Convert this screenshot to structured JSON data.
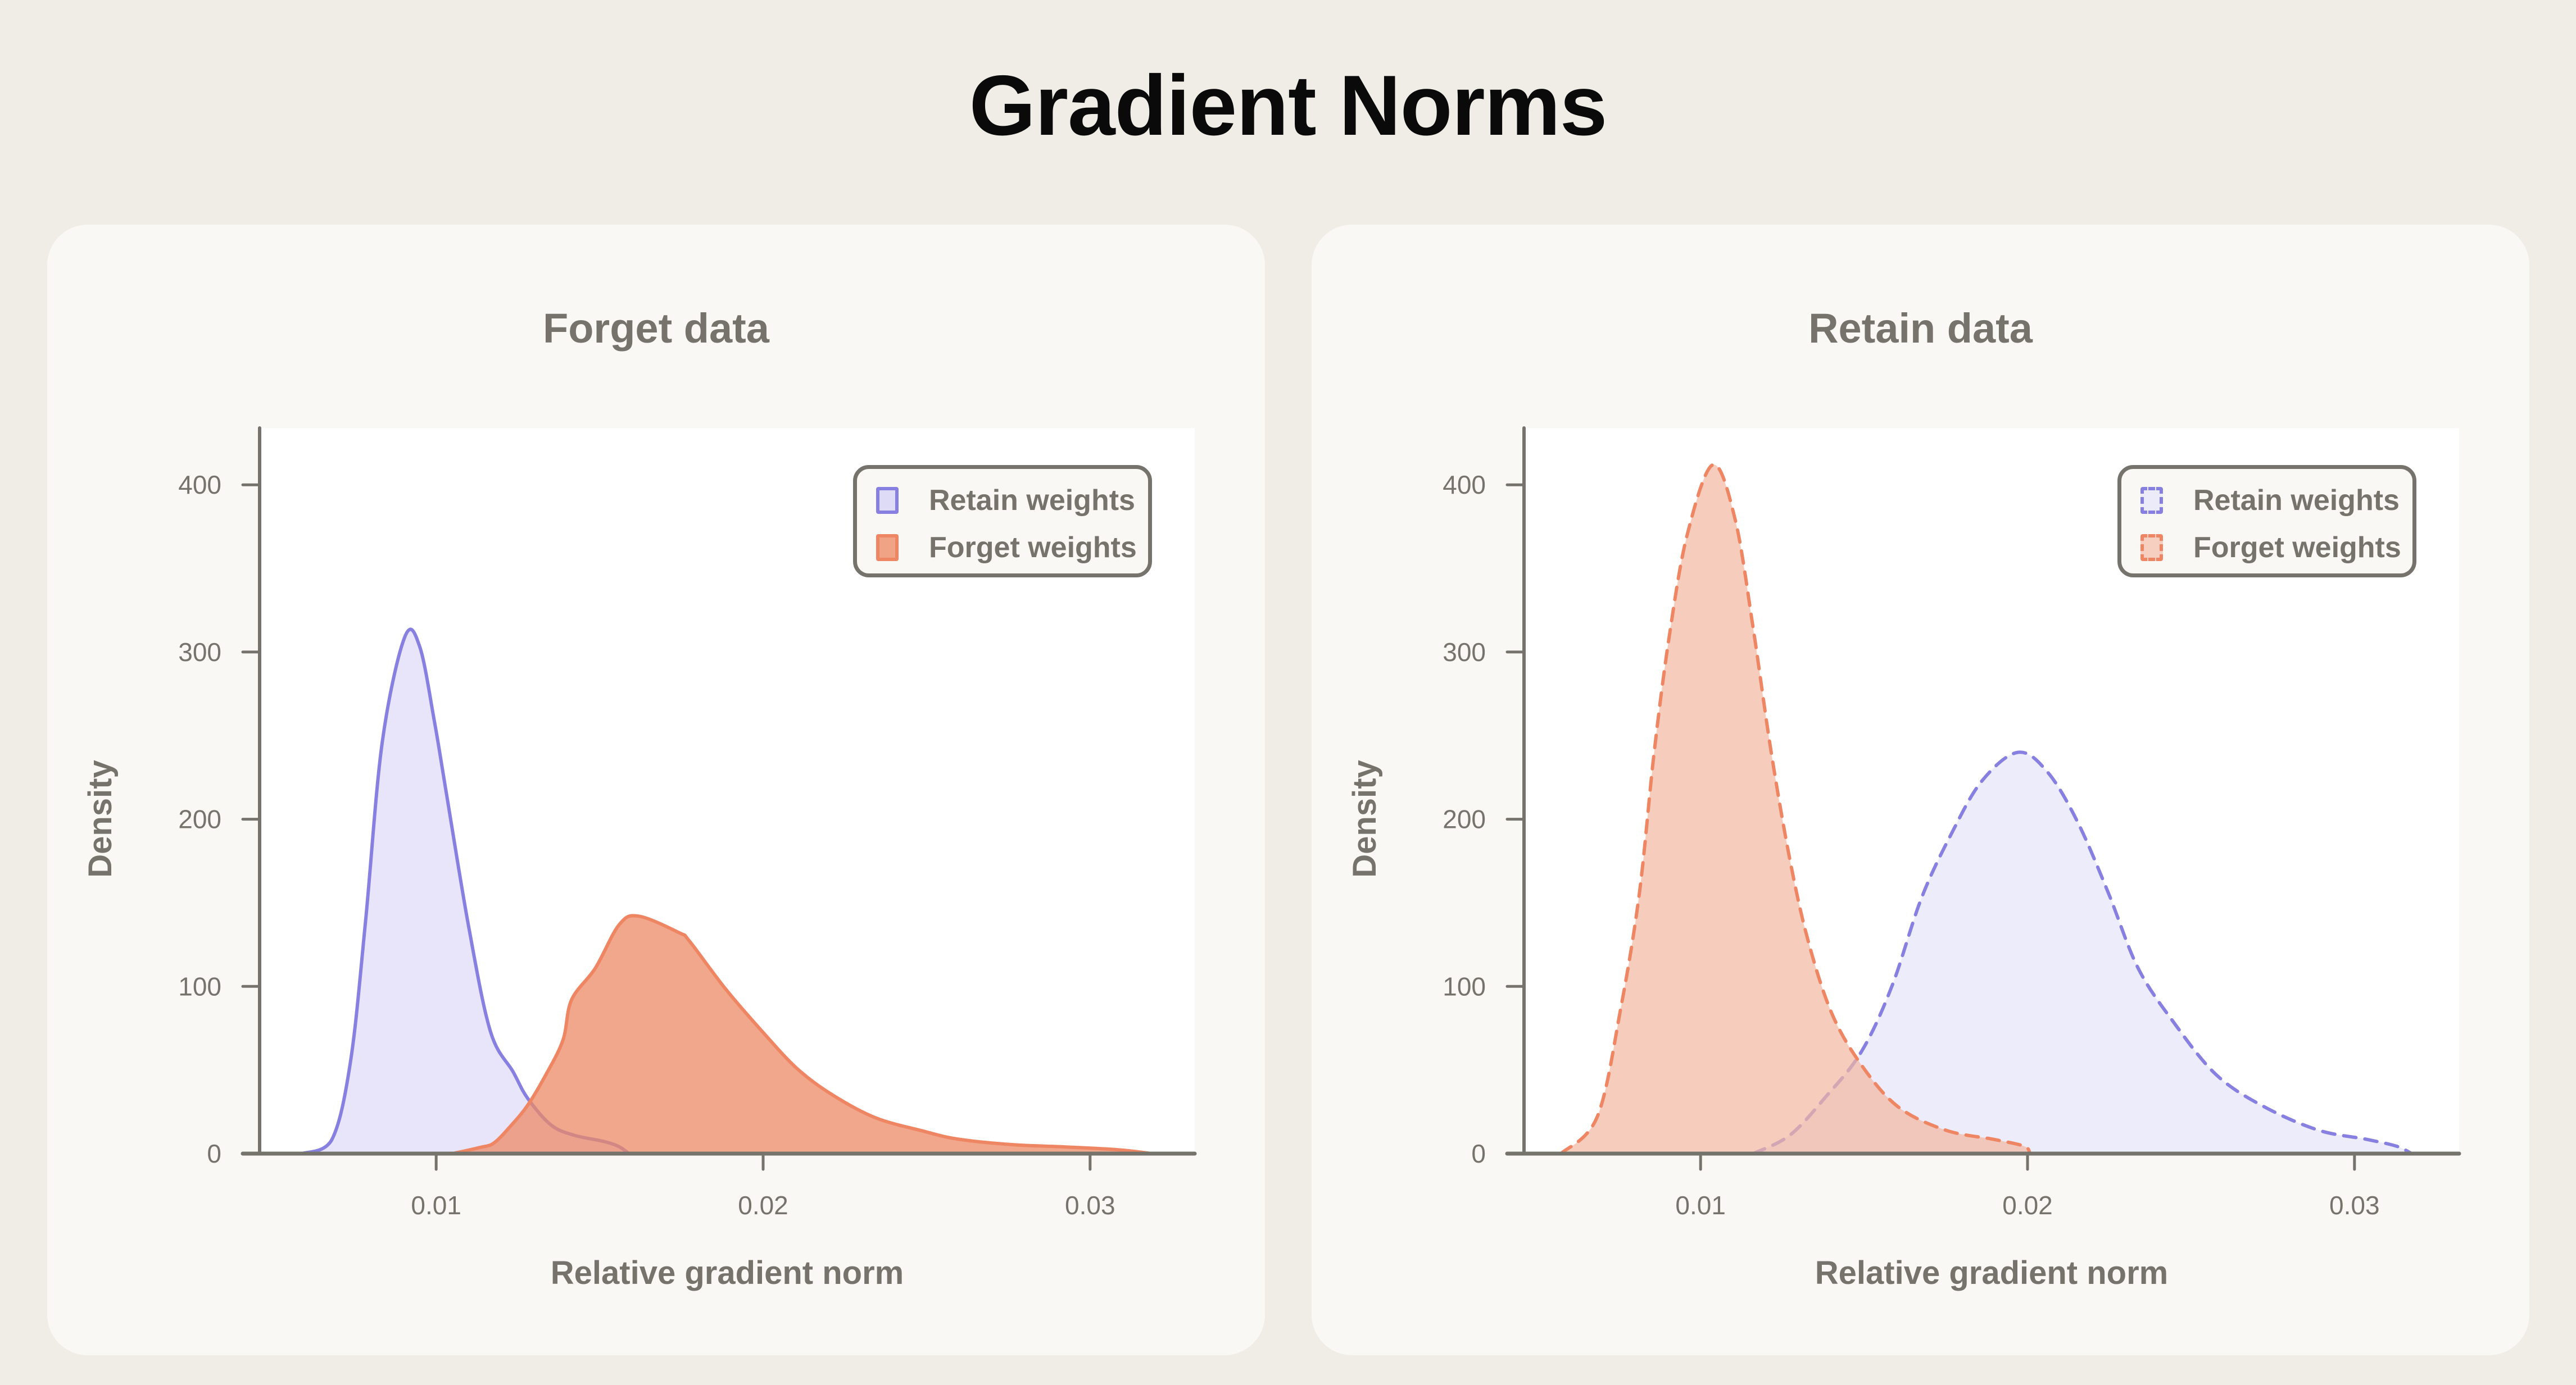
{
  "page": {
    "title": "Gradient Norms"
  },
  "colors": {
    "page_bg": "#f0ede6",
    "card_bg": "#f9f8f5",
    "axis": "#75736b",
    "retain_stroke": "#8880e0",
    "retain_fill_solid": "#e8e6f8",
    "retain_fill_dashed": "#ecebf9",
    "forget_stroke": "#ee8663",
    "forget_fill_solid": "#f1a386",
    "forget_fill_dashed": "#f6cfc0"
  },
  "panels": [
    {
      "title": "Forget data",
      "xlabel": "Relative gradient norm",
      "ylabel": "Density",
      "legend": [
        {
          "label": "Retain weights",
          "style": "solid",
          "series": "retain"
        },
        {
          "label": "Forget weights",
          "style": "solid",
          "series": "forget"
        }
      ]
    },
    {
      "title": "Retain data",
      "xlabel": "Relative gradient norm",
      "ylabel": "Density",
      "legend": [
        {
          "label": "Retain weights",
          "style": "dashed",
          "series": "retain"
        },
        {
          "label": "Forget weights",
          "style": "dashed",
          "series": "forget"
        }
      ]
    }
  ],
  "chart_data": [
    {
      "type": "area",
      "title": "Forget data",
      "xlabel": "Relative gradient norm",
      "ylabel": "Density",
      "xlim": [
        0.0046,
        0.0332
      ],
      "ylim": [
        0,
        434
      ],
      "xticks": [
        0.01,
        0.02,
        0.03
      ],
      "xtick_labels": [
        "0.01",
        "0.02",
        "0.03"
      ],
      "yticks": [
        0,
        100,
        200,
        300,
        400
      ],
      "ytick_labels": [
        "0",
        "100",
        "200",
        "300",
        "400"
      ],
      "grid": false,
      "legend_position": "upper right",
      "series": [
        {
          "name": "Retain weights",
          "line_style": "solid",
          "x": [
            0.0059,
            0.0068,
            0.00738,
            0.00784,
            0.00835,
            0.00904,
            0.0095,
            0.00995,
            0.0103,
            0.011,
            0.01166,
            0.01235,
            0.0128,
            0.01352,
            0.01422,
            0.0151,
            0.01557,
            0.0159
          ],
          "y": [
            0,
            8,
            55,
            139,
            246,
            309,
            303,
            258,
            217,
            135,
            73,
            49,
            33,
            17,
            11,
            7.4,
            4.4,
            0
          ]
        },
        {
          "name": "Forget weights",
          "line_style": "solid",
          "x": [
            0.0105,
            0.01134,
            0.01177,
            0.0123,
            0.0128,
            0.01335,
            0.01388,
            0.01414,
            0.01487,
            0.0156,
            0.0162,
            0.01744,
            0.01775,
            0.01883,
            0.01993,
            0.02103,
            0.02213,
            0.02343,
            0.02485,
            0.02595,
            0.02758,
            0.02923,
            0.03087,
            0.0319
          ],
          "y": [
            0,
            3.7,
            6.4,
            17,
            29,
            47,
            68,
            92,
            111,
            137,
            142,
            132,
            127,
            99,
            74,
            51,
            35,
            21.5,
            13.7,
            8.7,
            5.4,
            4,
            2.3,
            0
          ]
        }
      ]
    },
    {
      "type": "area",
      "title": "Retain data",
      "xlabel": "Relative gradient norm",
      "ylabel": "Density",
      "xlim": [
        0.0046,
        0.0332
      ],
      "ylim": [
        0,
        434
      ],
      "xticks": [
        0.01,
        0.02,
        0.03
      ],
      "xtick_labels": [
        "0.01",
        "0.02",
        "0.03"
      ],
      "yticks": [
        0,
        100,
        200,
        300,
        400
      ],
      "ytick_labels": [
        "0",
        "100",
        "200",
        "300",
        "400"
      ],
      "grid": false,
      "legend_position": "upper right",
      "series": [
        {
          "name": "Retain weights",
          "line_style": "dashed",
          "x": [
            0.01161,
            0.01273,
            0.01383,
            0.01492,
            0.01585,
            0.01676,
            0.01769,
            0.01861,
            0.01971,
            0.02062,
            0.02154,
            0.02247,
            0.02338,
            0.02449,
            0.02578,
            0.02724,
            0.0289,
            0.03038,
            0.03129,
            0.03175
          ],
          "y": [
            0,
            11,
            34,
            61,
            100,
            153,
            192,
            223,
            240,
            228,
            198,
            156,
            111,
            78,
            47,
            28,
            14,
            8.5,
            4.4,
            0
          ]
        },
        {
          "name": "Forget weights",
          "line_style": "dashed",
          "x": [
            0.00573,
            0.00684,
            0.00756,
            0.00813,
            0.00858,
            0.00904,
            0.00959,
            0.01038,
            0.01106,
            0.01161,
            0.01216,
            0.01273,
            0.01328,
            0.01401,
            0.01492,
            0.01604,
            0.0175,
            0.01897,
            0.0199,
            0.02007
          ],
          "y": [
            0,
            22,
            87,
            156,
            240,
            309,
            370,
            412,
            379,
            314,
            240,
            176,
            128,
            84,
            53,
            28,
            14,
            8.5,
            4.4,
            0
          ]
        }
      ]
    }
  ]
}
